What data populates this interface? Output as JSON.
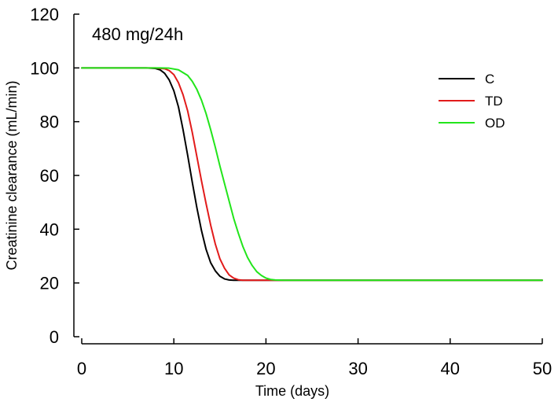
{
  "chart_data": {
    "type": "line",
    "title": "",
    "annotation": "480 mg/24h",
    "xlabel": "Time (days)",
    "ylabel": "Creatinine clearance (mL/min)",
    "xlim": [
      0,
      50
    ],
    "ylim": [
      0,
      120
    ],
    "x_ticks": [
      0,
      10,
      20,
      30,
      40,
      50
    ],
    "y_ticks": [
      0,
      20,
      40,
      60,
      80,
      100,
      120
    ],
    "grid": false,
    "legend_position": "top-right",
    "series": [
      {
        "name": "C",
        "color": "#000000",
        "x": [
          0,
          7,
          8,
          8.5,
          9,
          9.5,
          10,
          10.5,
          11,
          11.5,
          12,
          12.5,
          13,
          13.5,
          14,
          14.5,
          15,
          15.5,
          16,
          16.5,
          17,
          50
        ],
        "y": [
          100,
          100,
          99.8,
          99.3,
          98,
          95.5,
          91.5,
          85.5,
          77,
          67.5,
          57.5,
          48,
          39.5,
          32.5,
          27.5,
          24.5,
          22.5,
          21.5,
          21.1,
          21,
          21,
          21
        ]
      },
      {
        "name": "TD",
        "color": "#e21b1b",
        "x": [
          0,
          8,
          9,
          9.5,
          10,
          10.5,
          11,
          11.5,
          12,
          12.5,
          13,
          13.5,
          14,
          14.5,
          15,
          15.5,
          16,
          16.5,
          17,
          17.5,
          18,
          50
        ],
        "y": [
          100,
          100,
          99.7,
          99,
          97.5,
          94.5,
          90,
          84,
          76,
          67,
          58,
          49.5,
          41.5,
          34.5,
          29,
          25.5,
          23,
          21.8,
          21.2,
          21,
          21,
          21
        ]
      },
      {
        "name": "OD",
        "color": "#22e51b",
        "x": [
          0,
          8.5,
          9.5,
          10.5,
          11.5,
          12,
          12.5,
          13,
          13.5,
          14,
          14.5,
          15,
          15.5,
          16,
          16.5,
          17,
          17.5,
          18,
          18.5,
          19,
          19.5,
          20,
          20.5,
          21,
          22,
          50
        ],
        "y": [
          100,
          100,
          99.9,
          99.3,
          97.2,
          95,
          92,
          88,
          83,
          77,
          70.5,
          63.5,
          57,
          50.5,
          44,
          38.5,
          33.5,
          29.5,
          26.5,
          24.2,
          22.8,
          21.8,
          21.3,
          21.1,
          21,
          21
        ]
      }
    ]
  }
}
